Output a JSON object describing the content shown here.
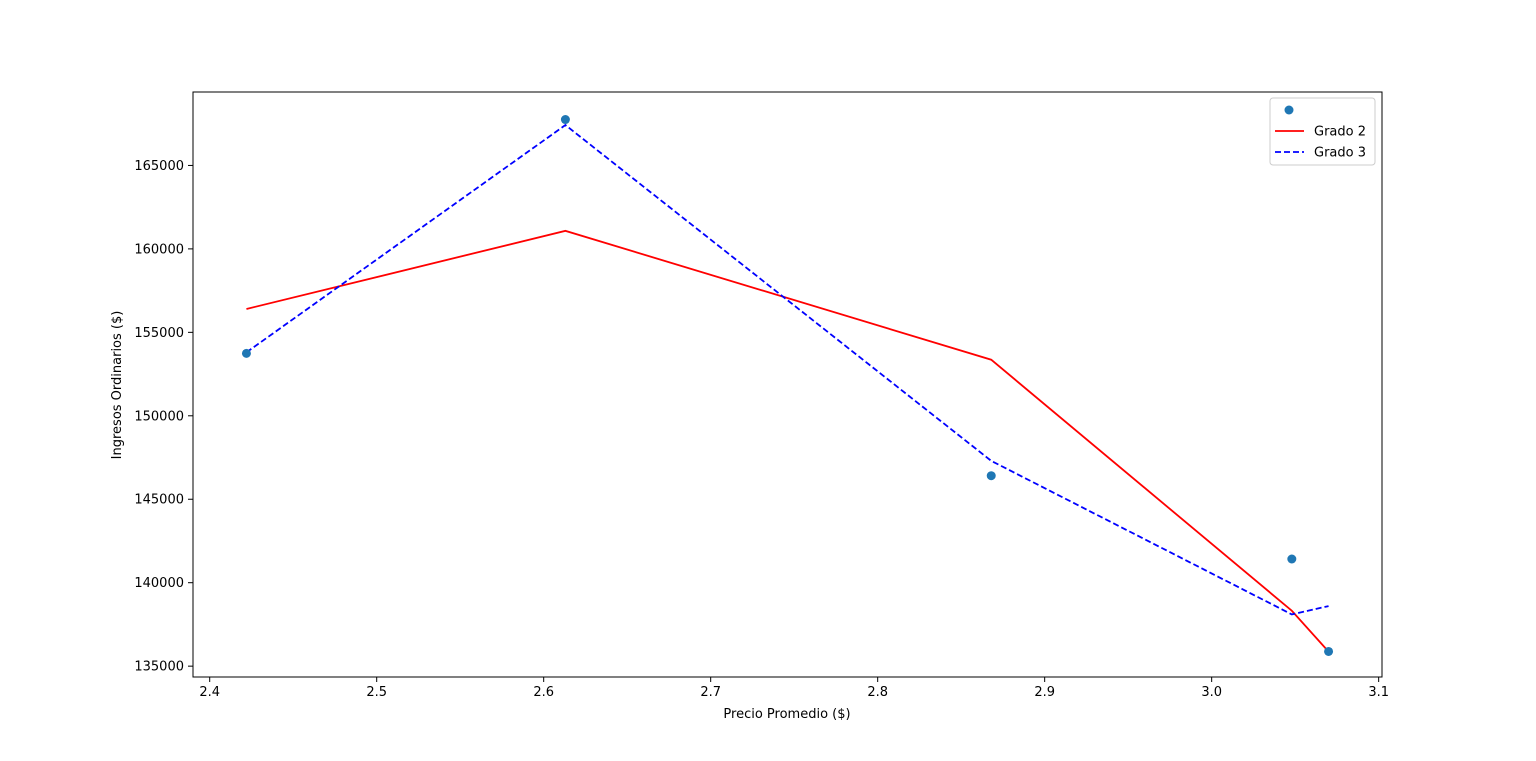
{
  "chart_data": {
    "type": "line",
    "title": "",
    "xlabel": "Precio Promedio ($)",
    "ylabel": "Ingresos Ordinarios ($)",
    "xlim": [
      2.39,
      3.102
    ],
    "ylim": [
      134350,
      169400
    ],
    "x_ticks": [
      2.4,
      2.5,
      2.6,
      2.7,
      2.8,
      2.9,
      3.0,
      3.1
    ],
    "x_tick_labels": [
      "2.4",
      "2.5",
      "2.6",
      "2.7",
      "2.8",
      "2.9",
      "3.0",
      "3.1"
    ],
    "y_ticks": [
      135000,
      140000,
      145000,
      150000,
      155000,
      160000,
      165000
    ],
    "y_tick_labels": [
      "135000",
      "140000",
      "145000",
      "150000",
      "155000",
      "160000",
      "165000"
    ],
    "grid": false,
    "legend_position": "upper right",
    "series": [
      {
        "kind": "scatter",
        "legend_label": "",
        "color": "#1f77b4",
        "x": [
          2.422,
          2.613,
          2.868,
          3.048,
          3.07
        ],
        "y": [
          153740,
          167750,
          146410,
          141420,
          135880
        ]
      },
      {
        "kind": "line",
        "name": "Grado 2",
        "color": "#ff0000",
        "style": "solid",
        "x": [
          2.422,
          2.613,
          2.868,
          3.048,
          3.07
        ],
        "y": [
          156400,
          161080,
          153360,
          138320,
          135870
        ]
      },
      {
        "kind": "line",
        "name": "Grado 3",
        "color": "#0000ff",
        "style": "dashed",
        "x": [
          2.422,
          2.613,
          2.868,
          3.048,
          3.07
        ],
        "y": [
          153800,
          167420,
          147300,
          138100,
          138600
        ]
      }
    ]
  }
}
